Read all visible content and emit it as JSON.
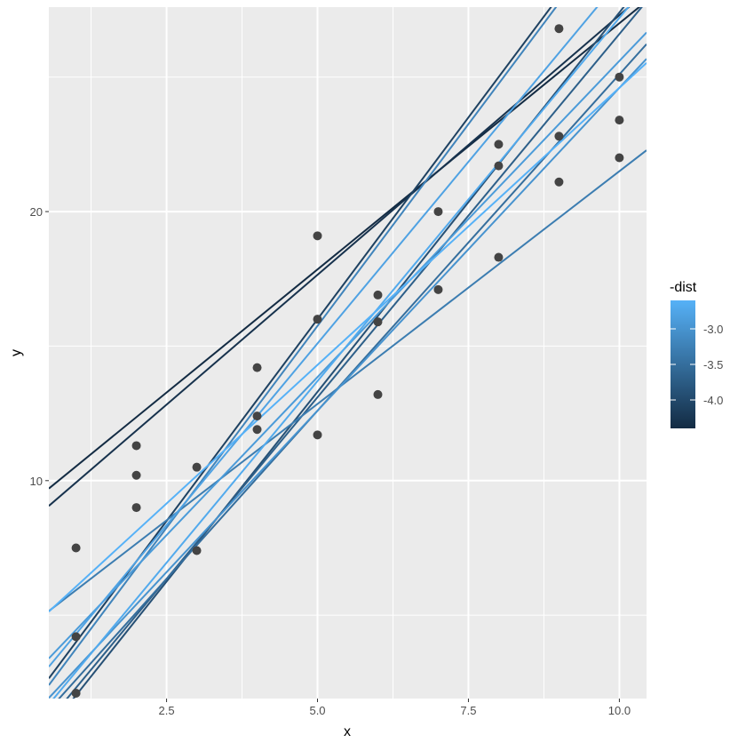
{
  "chart_data": {
    "type": "scatter",
    "title": "",
    "xlabel": "x",
    "ylabel": "y",
    "xlim": [
      0.55,
      10.45
    ],
    "ylim": [
      1.9,
      27.6
    ],
    "x_ticks": [
      {
        "value": 2.5,
        "label": "2.5"
      },
      {
        "value": 5.0,
        "label": "5.0"
      },
      {
        "value": 7.5,
        "label": "7.5"
      },
      {
        "value": 10.0,
        "label": "10.0"
      }
    ],
    "y_ticks": [
      {
        "value": 10,
        "label": "10"
      },
      {
        "value": 20,
        "label": "20"
      }
    ],
    "x_minor_gridlines": [
      1.25,
      3.75,
      6.25,
      8.75
    ],
    "y_minor_gridlines": [
      5,
      15,
      25
    ],
    "grid": true,
    "panel_background": "#ebebeb",
    "gridline_color": "#ffffff",
    "point_color": "#444444",
    "points": [
      {
        "x": 1,
        "y": 7.5
      },
      {
        "x": 1,
        "y": 4.2
      },
      {
        "x": 1,
        "y": 2.1
      },
      {
        "x": 2,
        "y": 11.3
      },
      {
        "x": 2,
        "y": 10.2
      },
      {
        "x": 2,
        "y": 9.0
      },
      {
        "x": 3,
        "y": 10.5
      },
      {
        "x": 3,
        "y": 7.4
      },
      {
        "x": 4,
        "y": 14.2
      },
      {
        "x": 4,
        "y": 12.4
      },
      {
        "x": 4,
        "y": 11.9
      },
      {
        "x": 5,
        "y": 19.1
      },
      {
        "x": 5,
        "y": 16.0
      },
      {
        "x": 5,
        "y": 11.7
      },
      {
        "x": 6,
        "y": 16.9
      },
      {
        "x": 6,
        "y": 15.9
      },
      {
        "x": 6,
        "y": 13.2
      },
      {
        "x": 7,
        "y": 20.0
      },
      {
        "x": 7,
        "y": 17.1
      },
      {
        "x": 8,
        "y": 22.5
      },
      {
        "x": 8,
        "y": 21.7
      },
      {
        "x": 8,
        "y": 18.3
      },
      {
        "x": 9,
        "y": 26.8
      },
      {
        "x": 9,
        "y": 22.8
      },
      {
        "x": 9,
        "y": 21.1
      },
      {
        "x": 10,
        "y": 25.0
      },
      {
        "x": 10,
        "y": 23.4
      },
      {
        "x": 10,
        "y": 22.0
      }
    ],
    "lines": [
      {
        "intercept": 8.7,
        "slope": 1.83,
        "dist": -4.4
      },
      {
        "intercept": 8.0,
        "slope": 1.93,
        "dist": -4.3
      },
      {
        "intercept": 1.0,
        "slope": 3.0,
        "dist": -4.1
      },
      {
        "intercept": -0.8,
        "slope": 2.82,
        "dist": -3.9
      },
      {
        "intercept": -0.4,
        "slope": 2.7,
        "dist": -3.7
      },
      {
        "intercept": 0.1,
        "slope": 2.5,
        "dist": -3.5
      },
      {
        "intercept": 4.2,
        "slope": 1.73,
        "dist": -3.3
      },
      {
        "intercept": 0.75,
        "slope": 3.0,
        "dist": -3.2
      },
      {
        "intercept": 0.6,
        "slope": 2.4,
        "dist": -3.0
      },
      {
        "intercept": 2.1,
        "slope": 2.35,
        "dist": -2.9
      },
      {
        "intercept": 1.6,
        "slope": 2.7,
        "dist": -2.8
      },
      {
        "intercept": 0.2,
        "slope": 2.7,
        "dist": -2.7
      },
      {
        "intercept": 4.0,
        "slope": 2.06,
        "dist": -2.6
      }
    ],
    "legend": {
      "title": "-dist",
      "placement": "right",
      "type": "colorbar",
      "range": [
        -4.4,
        -2.6
      ],
      "low_color": "#132b43",
      "high_color": "#56b1f7",
      "ticks": [
        {
          "value": -3.0,
          "label": "-3.0"
        },
        {
          "value": -3.5,
          "label": "-3.5"
        },
        {
          "value": -4.0,
          "label": "-4.0"
        }
      ]
    }
  }
}
